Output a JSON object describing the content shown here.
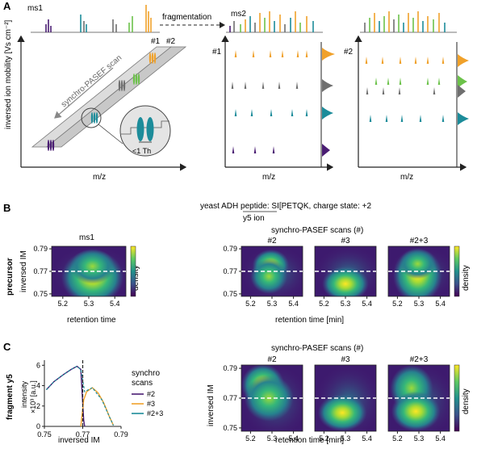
{
  "colors": {
    "orange": "#F0A12A",
    "gray": "#6F6F6F",
    "green": "#6CC24A",
    "teal": "#1C8C9A",
    "purple": "#4A1D73",
    "yellow": "#F5E21B"
  },
  "panel_a": {
    "letter": "A",
    "ms1_label": "ms1",
    "ms2_label": "ms2",
    "fragmentation_label": "fragmentation",
    "yaxis_label": "inversed ion mobility [Vs cm⁻²]",
    "xaxis_label": "m/z",
    "scan_label": "synchro-PASEF scan",
    "scan1": "#1",
    "scan2": "#2",
    "zoom_label": "<1 Th"
  },
  "panel_b": {
    "letter": "B",
    "peptide_line": "yeast ADH peptide: SI[PETQK, charge state: +2",
    "y5_label": "y5 ion",
    "row_label": "precursor",
    "ms1_title": "ms1",
    "synchro_title": "synchro-PASEF scans (#)",
    "titles": [
      "#2",
      "#3",
      "#2+3"
    ],
    "ylabel": "inversed IM",
    "xlabel_left": "retention time",
    "xlabel_right": "retention time [min]",
    "density_label": "density",
    "yticks": [
      "0.79",
      "0.77",
      "0.75"
    ],
    "xticks": [
      "5.2",
      "5.3",
      "5.4"
    ]
  },
  "panel_c": {
    "letter": "C",
    "row_label": "fragment y5",
    "synchro_title": "synchro-PASEF scans (#)",
    "titles": [
      "#2",
      "#3",
      "#2+3"
    ],
    "ylabel": "inversed IM",
    "xlabel_right": "retention time [min]",
    "density_label": "density",
    "yticks": [
      "0.79",
      "0.77",
      "0.75"
    ],
    "xticks": [
      "5.2",
      "5.3",
      "5.4"
    ],
    "line_ylabel1": "intensity",
    "line_ylabel2": "×10³ [a.u.]",
    "line_xlabel": "inversed IM",
    "line_yticks": [
      "6",
      "4",
      "2",
      "0"
    ],
    "line_xticks": [
      "0.75",
      "0.77",
      "0.79"
    ],
    "legend_title1": "synchro",
    "legend_title2": "scans",
    "legend": [
      "#2",
      "#3",
      "#2+3"
    ]
  },
  "chart_data": [
    {
      "type": "line",
      "xlabel": "inversed IM",
      "ylabel": "intensity ×10³ [a.u.]",
      "xlim": [
        0.75,
        0.79
      ],
      "ylim": [
        0,
        6.5
      ],
      "series": [
        {
          "name": "#2",
          "x": [
            0.751,
            0.755,
            0.76,
            0.764,
            0.767,
            0.769,
            0.7705,
            0.771
          ],
          "y": [
            3.6,
            4.4,
            5.1,
            5.6,
            5.9,
            5.6,
            0.6,
            0.0
          ]
        },
        {
          "name": "#3",
          "x": [
            0.769,
            0.7705,
            0.772,
            0.775,
            0.778,
            0.781,
            0.784,
            0.786
          ],
          "y": [
            0.0,
            2.6,
            3.4,
            3.8,
            3.3,
            2.3,
            0.9,
            0.1
          ]
        },
        {
          "name": "#2+3",
          "x": [
            0.751,
            0.755,
            0.76,
            0.764,
            0.767,
            0.769,
            0.771,
            0.775,
            0.78,
            0.784,
            0.786
          ],
          "y": [
            3.6,
            4.4,
            5.1,
            5.6,
            5.9,
            5.6,
            3.4,
            3.8,
            2.6,
            0.9,
            0.1
          ]
        }
      ]
    }
  ]
}
